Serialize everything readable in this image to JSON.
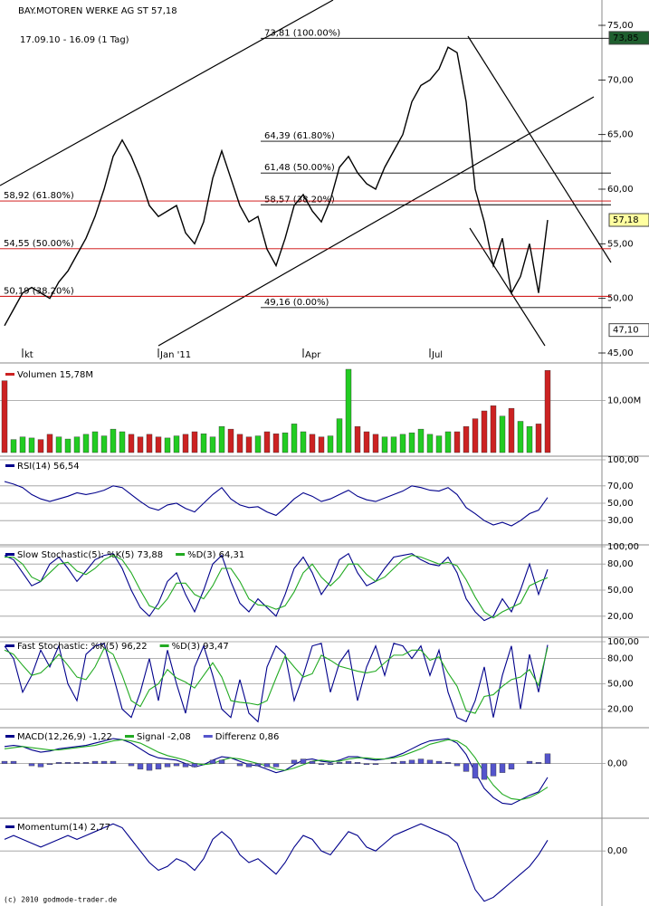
{
  "header": {
    "title": "BAY.MOTOREN WERKE AG ST 57,18",
    "period": "17.09.10 - 16.09 (1 Tag)"
  },
  "footer": "(c) 2010 godmode-trader.de",
  "chart_data": [
    {
      "type": "line",
      "categories": [
        null,
        null,
        "kt",
        null,
        null,
        null,
        null,
        null,
        null,
        null,
        null,
        null,
        null,
        null,
        null,
        null,
        null,
        "Jan '11",
        null,
        null,
        null,
        null,
        null,
        null,
        null,
        null,
        null,
        null,
        null,
        null,
        null,
        null,
        null,
        "Apr",
        null,
        null,
        null,
        null,
        null,
        null,
        null,
        null,
        null,
        null,
        null,
        null,
        null,
        "Jul",
        null,
        null,
        null,
        null,
        null,
        null,
        null,
        null,
        null,
        null,
        null,
        null,
        null
      ],
      "series": [
        {
          "color": "#000000",
          "values": [
            47.5,
            49,
            50.5,
            51,
            50.5,
            50,
            51.5,
            52.5,
            54,
            55.5,
            57.5,
            60,
            63,
            64.5,
            63,
            61,
            58.5,
            57.5,
            58,
            58.5,
            56,
            55,
            57,
            61,
            63.5,
            61,
            58.5,
            57,
            57.5,
            54.5,
            53,
            55.5,
            58.5,
            59.5,
            58,
            57,
            59,
            62,
            63,
            61.5,
            60.5,
            60,
            62,
            63.5,
            65,
            68,
            69.5,
            70,
            71,
            73,
            72.5,
            68,
            60,
            57,
            53,
            55.5,
            50.5,
            52,
            55,
            50.5,
            57.18
          ]
        }
      ],
      "ylim": [
        45,
        75
      ],
      "yticks": [
        {
          "value": 75,
          "label": "75,00"
        },
        {
          "value": 70,
          "label": "70,00"
        },
        {
          "value": 65,
          "label": "65,00"
        },
        {
          "value": 60,
          "label": "60,00"
        },
        {
          "value": 55,
          "label": "55,00"
        },
        {
          "value": 50,
          "label": "50,00"
        },
        {
          "value": 45,
          "label": "45,00"
        }
      ],
      "levels": [
        {
          "value": 73.81,
          "label": "73,81 (100.00%)",
          "color": "#000000"
        },
        {
          "value": 64.39,
          "label": "64,39 (61.80%)",
          "color": "#000000"
        },
        {
          "value": 61.48,
          "label": "61,48 (50.00%)",
          "color": "#000000"
        },
        {
          "value": 58.57,
          "label": "58,57 (38.20%)",
          "color": "#000000"
        },
        {
          "value": 49.16,
          "label": "49,16 (0.00%)",
          "color": "#000000"
        },
        {
          "value": 58.92,
          "label": "58,92 (61.80%)",
          "color": "#cc00cc"
        },
        {
          "value": 54.55,
          "label": "54,55 (50.00%)",
          "color": "#cc00cc"
        },
        {
          "value": 50.19,
          "label": "50,19 (38.20%)",
          "color": "#cc00cc"
        }
      ],
      "price_tags": [
        {
          "value": 73.85,
          "label": "73,85",
          "color": "#1f5f2f"
        },
        {
          "value": 57.18,
          "label": "57,18",
          "color": "#ffffa0"
        },
        {
          "value": 47.1,
          "label": "47,10",
          "color": "#ffffff"
        }
      ]
    },
    {
      "type": "bar",
      "series": [
        {
          "name": "Volumen 15,78M",
          "values": [
            13.8,
            2.5,
            3,
            2.8,
            2.5,
            3.5,
            3,
            2.6,
            3,
            3.5,
            4,
            3.2,
            4.5,
            4,
            3.5,
            3,
            3.5,
            3,
            2.8,
            3.2,
            3.5,
            4,
            3.6,
            3,
            5,
            4.5,
            3.5,
            3,
            3.2,
            4,
            3.6,
            3.8,
            5.5,
            4,
            3.5,
            3,
            3.2,
            6.5,
            16,
            5,
            4,
            3.5,
            3,
            3,
            3.5,
            3.8,
            4.5,
            3.5,
            3.2,
            4,
            4,
            5,
            6.5,
            8,
            9,
            7,
            8.5,
            6,
            5,
            5.5,
            15.78
          ],
          "colors": [
            "#c22",
            "#2c2",
            "#2c2",
            "#2c2",
            "#c22",
            "#c22",
            "#2c2",
            "#2c2",
            "#2c2",
            "#2c2",
            "#2c2",
            "#2c2",
            "#2c2",
            "#2c2",
            "#c22",
            "#c22",
            "#c22",
            "#c22",
            "#2c2",
            "#2c2",
            "#c22",
            "#c22",
            "#2c2",
            "#2c2",
            "#2c2",
            "#c22",
            "#c22",
            "#c22",
            "#2c2",
            "#c22",
            "#c22",
            "#2c2",
            "#2c2",
            "#2c2",
            "#c22",
            "#c22",
            "#2c2",
            "#2c2",
            "#2c2",
            "#c22",
            "#c22",
            "#c22",
            "#2c2",
            "#2c2",
            "#2c2",
            "#2c2",
            "#2c2",
            "#2c2",
            "#2c2",
            "#2c2",
            "#c22",
            "#c22",
            "#c22",
            "#c22",
            "#c22",
            "#2c2",
            "#c22",
            "#2c2",
            "#2c2",
            "#c22",
            "#c22"
          ]
        }
      ],
      "ylim": [
        0,
        16
      ],
      "yticks": [
        {
          "value": 10,
          "label": "10,00M"
        }
      ]
    },
    {
      "type": "line",
      "series": [
        {
          "name": "RSI(14) 56,54",
          "color": "#00008b",
          "values": [
            75,
            72,
            68,
            60,
            55,
            52,
            55,
            58,
            62,
            60,
            62,
            65,
            70,
            68,
            60,
            52,
            45,
            42,
            48,
            50,
            44,
            40,
            50,
            60,
            68,
            55,
            48,
            45,
            46,
            40,
            36,
            45,
            55,
            62,
            58,
            52,
            55,
            60,
            65,
            58,
            54,
            52,
            56,
            60,
            64,
            70,
            68,
            65,
            64,
            68,
            60,
            45,
            38,
            30,
            25,
            28,
            24,
            30,
            38,
            42,
            56.54
          ]
        }
      ],
      "ylim": [
        0,
        100
      ],
      "yticks": [
        {
          "value": 100,
          "label": "100,00"
        },
        {
          "value": 70,
          "label": "70,00"
        },
        {
          "value": 50,
          "label": "50,00"
        },
        {
          "value": 30,
          "label": "30,00"
        }
      ]
    },
    {
      "type": "line",
      "series": [
        {
          "name": "Slow Stochastic(5): %K(5) 73,88",
          "color": "#00008b",
          "values": [
            90,
            85,
            70,
            55,
            60,
            80,
            88,
            75,
            60,
            72,
            85,
            90,
            92,
            75,
            50,
            30,
            20,
            35,
            60,
            70,
            45,
            25,
            50,
            80,
            90,
            60,
            35,
            25,
            40,
            30,
            20,
            45,
            75,
            88,
            70,
            45,
            60,
            85,
            92,
            70,
            55,
            60,
            75,
            88,
            90,
            92,
            85,
            80,
            78,
            88,
            70,
            40,
            25,
            15,
            20,
            40,
            25,
            50,
            80,
            45,
            73.88
          ]
        },
        {
          "name": "%D(3) 64,31",
          "color": "#22aa22",
          "values": [
            88,
            88,
            80,
            65,
            60,
            70,
            80,
            82,
            72,
            68,
            75,
            85,
            90,
            85,
            70,
            50,
            32,
            28,
            40,
            58,
            58,
            45,
            40,
            55,
            75,
            75,
            60,
            40,
            33,
            32,
            28,
            32,
            48,
            70,
            80,
            65,
            55,
            65,
            80,
            80,
            68,
            60,
            65,
            75,
            85,
            90,
            88,
            84,
            80,
            82,
            78,
            62,
            42,
            25,
            18,
            25,
            30,
            35,
            55,
            60,
            64.31
          ]
        }
      ],
      "ylim": [
        0,
        100
      ],
      "yticks": [
        {
          "value": 100,
          "label": "100,00"
        },
        {
          "value": 80,
          "label": "80,00"
        },
        {
          "value": 50,
          "label": "50,00"
        },
        {
          "value": 20,
          "label": "20,00"
        }
      ]
    },
    {
      "type": "line",
      "series": [
        {
          "name": "Fast Stochastic: %K(5) 96,22",
          "color": "#00008b",
          "values": [
            95,
            80,
            40,
            60,
            90,
            70,
            95,
            50,
            30,
            85,
            95,
            98,
            60,
            20,
            10,
            40,
            80,
            30,
            90,
            50,
            15,
            70,
            95,
            60,
            20,
            10,
            55,
            15,
            5,
            70,
            95,
            85,
            30,
            60,
            95,
            98,
            40,
            75,
            90,
            30,
            70,
            95,
            60,
            98,
            95,
            80,
            95,
            60,
            90,
            40,
            10,
            5,
            30,
            70,
            10,
            60,
            95,
            20,
            85,
            40,
            96.22
          ]
        },
        {
          "name": "%D(3) 93,47",
          "color": "#22aa22",
          "values": [
            90,
            85,
            72,
            60,
            63,
            73,
            85,
            72,
            58,
            55,
            70,
            92,
            85,
            60,
            30,
            23,
            43,
            50,
            67,
            57,
            52,
            45,
            60,
            75,
            58,
            30,
            28,
            27,
            25,
            30,
            57,
            83,
            70,
            58,
            62,
            84,
            78,
            71,
            68,
            65,
            63,
            65,
            75,
            84,
            84,
            90,
            90,
            78,
            82,
            63,
            47,
            18,
            15,
            35,
            37,
            47,
            55,
            58,
            67,
            48,
            93.47
          ]
        }
      ],
      "ylim": [
        0,
        100
      ],
      "yticks": [
        {
          "value": 100,
          "label": "100,00"
        },
        {
          "value": 80,
          "label": "80,00"
        },
        {
          "value": 50,
          "label": "50,00"
        },
        {
          "value": 20,
          "label": "20,00"
        }
      ]
    },
    {
      "type": "line",
      "series": [
        {
          "name": "MACD(12,26,9) -1,22",
          "color": "#00008b",
          "values": [
            1.5,
            1.6,
            1.5,
            1.2,
            1.0,
            1.1,
            1.3,
            1.4,
            1.5,
            1.6,
            1.8,
            2.0,
            2.2,
            2.1,
            1.8,
            1.3,
            0.8,
            0.5,
            0.4,
            0.3,
            0.0,
            -0.3,
            -0.1,
            0.3,
            0.6,
            0.5,
            0.2,
            -0.1,
            -0.2,
            -0.5,
            -0.8,
            -0.6,
            -0.1,
            0.3,
            0.4,
            0.2,
            0.1,
            0.3,
            0.6,
            0.6,
            0.4,
            0.3,
            0.4,
            0.6,
            0.9,
            1.3,
            1.7,
            2.0,
            2.1,
            2.2,
            1.8,
            0.8,
            -0.8,
            -2.2,
            -3.0,
            -3.5,
            -3.6,
            -3.2,
            -2.8,
            -2.5,
            -1.22
          ]
        },
        {
          "name": "Signal -2,08",
          "color": "#22aa22",
          "values": [
            1.3,
            1.4,
            1.5,
            1.4,
            1.3,
            1.2,
            1.2,
            1.3,
            1.4,
            1.5,
            1.6,
            1.8,
            2.0,
            2.1,
            2.0,
            1.8,
            1.4,
            1.0,
            0.7,
            0.5,
            0.3,
            0.0,
            -0.1,
            0.0,
            0.3,
            0.5,
            0.4,
            0.2,
            0.0,
            -0.2,
            -0.5,
            -0.6,
            -0.4,
            -0.1,
            0.2,
            0.3,
            0.2,
            0.2,
            0.4,
            0.5,
            0.5,
            0.4,
            0.4,
            0.5,
            0.7,
            1.0,
            1.3,
            1.7,
            1.9,
            2.1,
            2.0,
            1.5,
            0.5,
            -0.8,
            -1.9,
            -2.7,
            -3.1,
            -3.2,
            -3.0,
            -2.6,
            -2.08
          ]
        },
        {
          "name": "Differenz 0,86",
          "type": "bar",
          "color": "#5555cc",
          "values": [
            0.2,
            0.2,
            0,
            -0.2,
            -0.3,
            -0.1,
            0.1,
            0.1,
            0.1,
            0.1,
            0.2,
            0.2,
            0.2,
            0,
            -0.2,
            -0.5,
            -0.6,
            -0.5,
            -0.3,
            -0.2,
            -0.3,
            -0.3,
            0,
            0.3,
            0.3,
            0,
            -0.2,
            -0.3,
            -0.2,
            -0.3,
            -0.3,
            0,
            0.3,
            0.4,
            0.2,
            -0.1,
            -0.1,
            0.1,
            0.2,
            0.1,
            -0.1,
            -0.1,
            0,
            0.1,
            0.2,
            0.3,
            0.4,
            0.3,
            0.2,
            0.1,
            -0.2,
            -0.7,
            -1.3,
            -1.4,
            -1.1,
            -0.8,
            -0.5,
            0,
            0.2,
            0.1,
            0.86
          ]
        }
      ],
      "ylim": [
        -4.5,
        3
      ],
      "yticks": [
        {
          "value": 0,
          "label": "0,00"
        }
      ]
    },
    {
      "type": "line",
      "series": [
        {
          "name": "Momentum(14) 2,77",
          "color": "#00008b",
          "values": [
            3,
            4,
            3,
            2,
            1,
            2,
            3,
            4,
            3,
            4,
            5,
            6,
            7,
            6,
            3,
            0,
            -3,
            -5,
            -4,
            -2,
            -3,
            -5,
            -2,
            3,
            5,
            3,
            -1,
            -3,
            -2,
            -4,
            -6,
            -3,
            1,
            4,
            3,
            0,
            -1,
            2,
            5,
            4,
            1,
            0,
            2,
            4,
            5,
            6,
            7,
            6,
            5,
            4,
            2,
            -4,
            -10,
            -13,
            -12,
            -10,
            -8,
            -6,
            -4,
            -1,
            2.77
          ]
        }
      ],
      "ylim": [
        -14,
        8
      ],
      "yticks": [
        {
          "value": 0,
          "label": "0,00"
        }
      ]
    }
  ]
}
